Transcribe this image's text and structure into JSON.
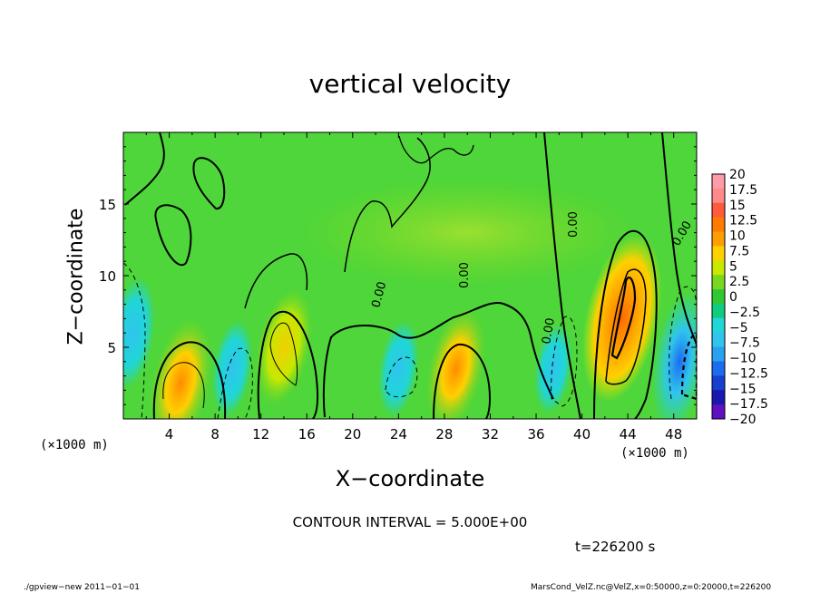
{
  "chart_data": {
    "type": "heatmap",
    "title": "vertical velocity",
    "xlabel": "X−coordinate",
    "ylabel": "Z−coordinate",
    "x_unit_left": "(×1000 m)",
    "x_unit_right": "(×1000 m)",
    "xlim": [
      0,
      50
    ],
    "ylim": [
      0,
      20
    ],
    "xticks": [
      4,
      8,
      12,
      16,
      20,
      24,
      28,
      32,
      36,
      40,
      44,
      48
    ],
    "yticks": [
      5,
      10,
      15
    ],
    "contour_labels": [
      "0.00",
      "0.00",
      "0.00",
      "0.00",
      "0.00"
    ],
    "colorbar": {
      "levels": [
        "20",
        "17.5",
        "15",
        "12.5",
        "10",
        "7.5",
        "5",
        "2.5",
        "0",
        "−2.5",
        "−5",
        "−7.5",
        "−10",
        "−12.5",
        "−15",
        "−17.5",
        "−20"
      ],
      "colors": [
        "#ff9aa8",
        "#ff8a8a",
        "#ff5a3c",
        "#ff7a00",
        "#ff9e00",
        "#ffd000",
        "#c8e800",
        "#78d820",
        "#30c830",
        "#10cc80",
        "#20d6d6",
        "#30c4ee",
        "#2aa0f0",
        "#1c6cf0",
        "#1840d0",
        "#1818b0",
        "#6010c0"
      ]
    },
    "features": [
      {
        "kind": "updraft",
        "x": 5,
        "z": 2.5,
        "peak": 9
      },
      {
        "kind": "updraft",
        "x": 14,
        "z": 5,
        "peak": 7
      },
      {
        "kind": "updraft",
        "x": 29,
        "z": 3.5,
        "peak": 8
      },
      {
        "kind": "updraft",
        "x": 43.5,
        "z": 7,
        "peak": 14
      },
      {
        "kind": "downdraft",
        "x": 0.8,
        "z": 6,
        "peak": -8
      },
      {
        "kind": "downdraft",
        "x": 9.5,
        "z": 3.5,
        "peak": -6
      },
      {
        "kind": "downdraft",
        "x": 24,
        "z": 3.5,
        "peak": -6
      },
      {
        "kind": "downdraft",
        "x": 37.5,
        "z": 3.5,
        "peak": -5
      },
      {
        "kind": "downdraft",
        "x": 48.5,
        "z": 4,
        "peak": -12
      }
    ]
  },
  "contour_interval": "CONTOUR INTERVAL = 5.000E+00",
  "time": "t=226200 s",
  "footer_left": "./gpview−new   2011−01−01",
  "footer_right": "MarsCond_VelZ.nc@VelZ,x=0:50000,z=0:20000,t=226200"
}
